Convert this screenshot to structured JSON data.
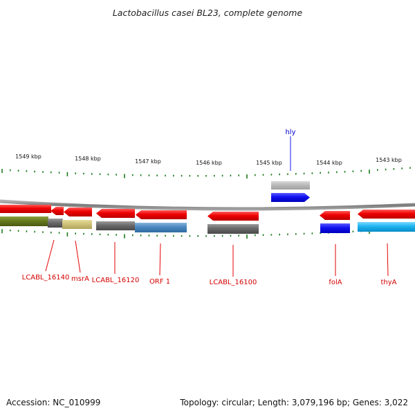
{
  "map": {
    "title": "Lactobacillus casei BL23, complete genome",
    "accession": "Accession: NC_010999",
    "summary": "Topology: circular; Length: 3,079,196 bp; Genes: 3,022"
  },
  "kbp_ticks": [
    {
      "label": "1549 kbp"
    },
    {
      "label": "1548 kbp"
    },
    {
      "label": "1547 kbp"
    },
    {
      "label": "1546 kbp"
    },
    {
      "label": "1545 kbp"
    },
    {
      "label": "1544 kbp"
    },
    {
      "label": "1543 kbp"
    }
  ],
  "gene_labels": [
    {
      "text": "LCABL_16140"
    },
    {
      "text": "msrA"
    },
    {
      "text": "LCABL_16120"
    },
    {
      "text": "ORF 1"
    },
    {
      "text": "LCABL_16100"
    },
    {
      "text": "folA"
    },
    {
      "text": "thyA"
    },
    {
      "text": "hly"
    }
  ],
  "colors": {
    "forward_cds": "#1a1aee",
    "reverse_cds": "#e60000",
    "gene_label": "#d40000",
    "forward_label": "#0000cc",
    "tick": "#1a7a1a",
    "backbone": "#8a8a8a"
  }
}
